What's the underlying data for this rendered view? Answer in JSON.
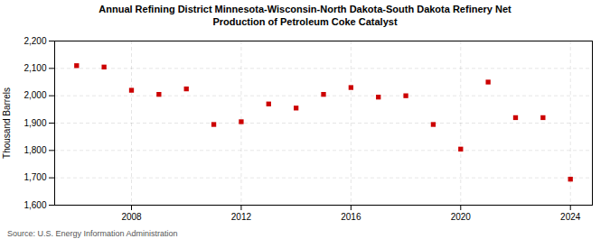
{
  "chart_data": {
    "type": "scatter",
    "title": "Annual Refining District Minnesota-Wisconsin-North Dakota-South Dakota Refinery Net\nProduction of Petroleum Coke Catalyst",
    "ylabel": "Thousand Barrels",
    "caption": "Source: U.S. Energy Information Administration",
    "x": [
      2006,
      2007,
      2008,
      2009,
      2010,
      2011,
      2012,
      2013,
      2014,
      2015,
      2016,
      2017,
      2018,
      2019,
      2020,
      2021,
      2022,
      2023,
      2024
    ],
    "values": [
      2110,
      2105,
      2020,
      2005,
      2025,
      1895,
      1905,
      1970,
      1955,
      2005,
      2030,
      1995,
      2000,
      1895,
      1805,
      2050,
      1920,
      1920,
      1695
    ],
    "color": "#cc0000",
    "marker": "square",
    "xlim": [
      2005.2,
      2024.8
    ],
    "xticks": [
      2008,
      2012,
      2016,
      2020,
      2024
    ],
    "ylim": [
      1600,
      2200
    ],
    "yticks": [
      {
        "value": 1600,
        "label": "1,600"
      },
      {
        "value": 1700,
        "label": "1,700"
      },
      {
        "value": 1800,
        "label": "1,800"
      },
      {
        "value": 1900,
        "label": "1,900"
      },
      {
        "value": 2000,
        "label": "2,000"
      },
      {
        "value": 2100,
        "label": "2,100"
      },
      {
        "value": 2200,
        "label": "2,200"
      }
    ],
    "grid": true
  }
}
